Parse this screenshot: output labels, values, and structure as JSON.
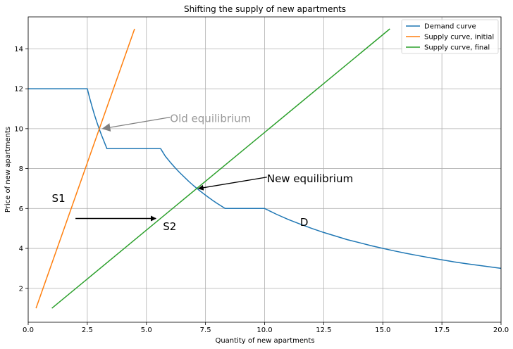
{
  "chart_data": {
    "type": "line",
    "title": "Shifting the supply of new apartments",
    "xlabel": "Quantity of new apartments",
    "ylabel": "Price of new apartments",
    "xlim": [
      0,
      20
    ],
    "ylim": [
      0.3,
      15.6
    ],
    "xticks": [
      0,
      2.5,
      5,
      7.5,
      10,
      12.5,
      15,
      17.5,
      20
    ],
    "xtick_labels": [
      "0.0",
      "2.5",
      "5.0",
      "7.5",
      "10.0",
      "12.5",
      "15.0",
      "17.5",
      "20.0"
    ],
    "yticks": [
      2,
      4,
      6,
      8,
      10,
      12,
      14
    ],
    "ytick_labels": [
      "2",
      "4",
      "6",
      "8",
      "10",
      "12",
      "14"
    ],
    "grid": true,
    "legend": "top-right",
    "series": [
      {
        "name": "Demand curve",
        "color": "#1f77b4",
        "x": [
          0,
          2.5,
          2.6,
          2.7,
          2.8,
          2.9,
          3.0,
          3.1,
          3.2,
          3.33,
          5.6,
          5.8,
          6.0,
          6.2,
          6.4,
          6.6,
          6.8,
          7.0,
          7.2,
          7.4,
          7.6,
          7.8,
          8.0,
          8.33,
          10.0,
          10.5,
          11,
          11.5,
          12,
          12.5,
          13,
          13.5,
          14,
          14.5,
          15,
          15.5,
          16,
          16.5,
          17,
          17.5,
          18,
          18.5,
          19,
          19.5,
          20
        ],
        "y": [
          12,
          12,
          11.54,
          11.11,
          10.71,
          10.34,
          10.0,
          9.68,
          9.38,
          9.0,
          9.0,
          8.62,
          8.33,
          8.06,
          7.81,
          7.58,
          7.35,
          7.14,
          6.94,
          6.76,
          6.58,
          6.41,
          6.25,
          6.0,
          6.0,
          5.71,
          5.45,
          5.22,
          5.0,
          4.8,
          4.62,
          4.44,
          4.29,
          4.14,
          4.0,
          3.87,
          3.75,
          3.64,
          3.53,
          3.43,
          3.33,
          3.24,
          3.16,
          3.08,
          3.0
        ]
      },
      {
        "name": "Supply curve, initial",
        "color": "#ff7f0e",
        "x": [
          0.33,
          4.5
        ],
        "y": [
          1,
          15
        ]
      },
      {
        "name": "Supply curve, final",
        "color": "#2ca02c",
        "x": [
          1,
          15.3
        ],
        "y": [
          1,
          15
        ]
      }
    ],
    "annotations": [
      {
        "text": "Old equilibrium",
        "x": 6.0,
        "y": 10.5,
        "color": "#999999",
        "arrow_to": [
          3.15,
          10.0
        ],
        "arrow_color": "#808080"
      },
      {
        "text": "New equilibrium",
        "x": 10.1,
        "y": 7.5,
        "color": "#000000",
        "arrow_to": [
          7.2,
          7.0
        ],
        "arrow_color": "#000000"
      },
      {
        "text": "S1",
        "x": 1.0,
        "y": 6.5,
        "color": "#000000"
      },
      {
        "text": "S2",
        "x": 5.7,
        "y": 5.1,
        "color": "#000000"
      },
      {
        "text": "D",
        "x": 11.5,
        "y": 5.3,
        "color": "#000000"
      }
    ],
    "shift_arrow": {
      "from": [
        2.0,
        5.5
      ],
      "to": [
        5.4,
        5.5
      ],
      "color": "#000000"
    }
  }
}
